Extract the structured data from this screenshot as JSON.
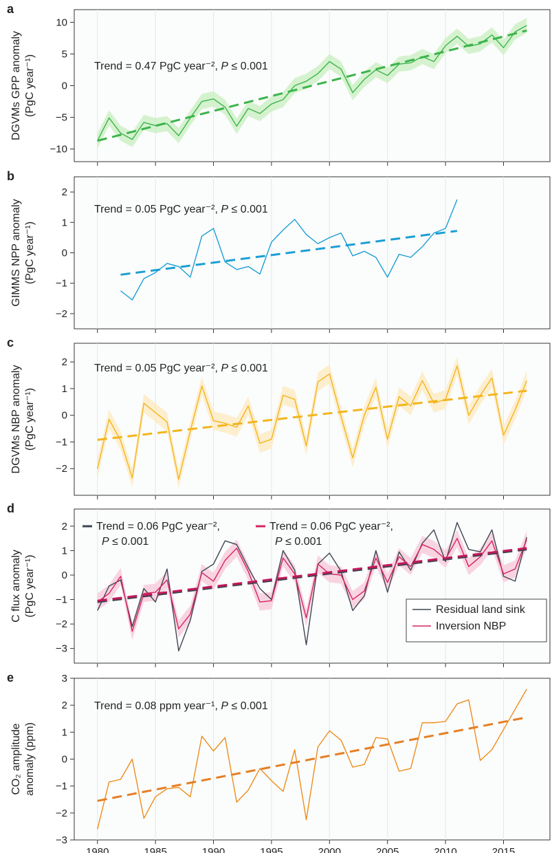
{
  "chart_data": [
    {
      "panel": "a",
      "type": "line",
      "ylabel_lines": [
        "DGVMs GPP anomaly",
        "(PgC year⁻¹)"
      ],
      "ylim": [
        -12,
        12
      ],
      "yticks": [
        -10,
        -5,
        0,
        5,
        10
      ],
      "xlim": [
        1978,
        2019
      ],
      "annotation": {
        "lead": "Trend = 0.47 PgC year⁻², ",
        "italic": "P",
        "tail": " ≤ 0.001"
      },
      "series": [
        {
          "x": [
            1980,
            1981,
            1982,
            1983,
            1984,
            1985,
            1986,
            1987,
            1988,
            1989,
            1990,
            1991,
            1992,
            1993,
            1994,
            1995,
            1996,
            1997,
            1998,
            1999,
            2000,
            2001,
            2002,
            2003,
            2004,
            2005,
            2006,
            2007,
            2008,
            2009,
            2010,
            2011,
            2012,
            2013,
            2014,
            2015,
            2016,
            2017
          ],
          "y": [
            -8.7,
            -5.1,
            -7.5,
            -8.5,
            -5.8,
            -6.3,
            -6.0,
            -7.9,
            -5.1,
            -2.5,
            -2.1,
            -3.4,
            -6.4,
            -3.6,
            -4.4,
            -2.9,
            -2.2,
            0.0,
            0.7,
            1.9,
            3.8,
            2.6,
            -1.1,
            1.0,
            2.5,
            1.6,
            3.4,
            3.6,
            4.6,
            3.8,
            6.3,
            7.8,
            6.2,
            6.6,
            8.0,
            6.0,
            8.5,
            9.5
          ],
          "color": "#3cb44b",
          "band_color": "#c8efc0",
          "band": 1.2
        }
      ],
      "trend": {
        "x": [
          1980,
          2017
        ],
        "y": [
          -8.7,
          8.7
        ],
        "color": "#3cb44b"
      }
    },
    {
      "panel": "b",
      "type": "line",
      "ylabel_lines": [
        "GIMMS NPP anomaly",
        "(PgC year⁻¹)"
      ],
      "ylim": [
        -2.5,
        2.5
      ],
      "yticks": [
        -2,
        -1,
        0,
        1,
        2
      ],
      "xlim": [
        1978,
        2019
      ],
      "annotation": {
        "lead": "Trend = 0.05 PgC year⁻², ",
        "italic": "P",
        "tail": " ≤ 0.001"
      },
      "series": [
        {
          "x": [
            1982,
            1983,
            1984,
            1985,
            1986,
            1987,
            1988,
            1989,
            1990,
            1991,
            1992,
            1993,
            1994,
            1995,
            1996,
            1997,
            1998,
            1999,
            2000,
            2001,
            2002,
            2003,
            2004,
            2005,
            2006,
            2007,
            2008,
            2009,
            2010,
            2011
          ],
          "y": [
            -1.25,
            -1.55,
            -0.85,
            -0.65,
            -0.35,
            -0.45,
            -0.8,
            0.55,
            0.8,
            -0.3,
            -0.55,
            -0.45,
            -0.7,
            0.35,
            0.75,
            1.1,
            0.6,
            0.3,
            0.5,
            0.65,
            -0.1,
            0.05,
            -0.15,
            -0.8,
            -0.05,
            -0.15,
            0.2,
            0.65,
            0.8,
            1.75
          ],
          "color": "#1b9fd4"
        }
      ],
      "trend": {
        "x": [
          1982,
          2011
        ],
        "y": [
          -0.72,
          0.72
        ],
        "color": "#1b9fd4"
      }
    },
    {
      "panel": "c",
      "type": "line",
      "ylabel_lines": [
        "DGVMs NBP anomaly",
        "(PgC year⁻¹)"
      ],
      "ylim": [
        -3,
        2.7
      ],
      "yticks": [
        -2,
        -1,
        0,
        1,
        2
      ],
      "xlim": [
        1978,
        2019
      ],
      "annotation": {
        "lead": "Trend = 0.05 PgC year⁻², ",
        "italic": "P",
        "tail": " ≤ 0.001"
      },
      "series": [
        {
          "x": [
            1980,
            1981,
            1982,
            1983,
            1984,
            1985,
            1986,
            1987,
            1988,
            1989,
            1990,
            1991,
            1992,
            1993,
            1994,
            1995,
            1996,
            1997,
            1998,
            1999,
            2000,
            2001,
            2002,
            2003,
            2004,
            2005,
            2006,
            2007,
            2008,
            2009,
            2010,
            2011,
            2012,
            2013,
            2014,
            2015,
            2016,
            2017
          ],
          "y": [
            -2.0,
            -0.15,
            -0.95,
            -2.35,
            0.45,
            0.1,
            -0.25,
            -2.4,
            -0.6,
            1.1,
            -0.2,
            -0.3,
            -0.45,
            0.35,
            -1.05,
            -0.9,
            0.75,
            0.6,
            -1.15,
            1.25,
            1.55,
            -0.05,
            -1.6,
            0.0,
            1.05,
            -0.9,
            0.7,
            0.35,
            1.3,
            0.45,
            0.6,
            1.85,
            0.0,
            0.75,
            1.4,
            -0.75,
            0.2,
            1.3
          ],
          "color": "#f2b51c",
          "band_color": "#fde9bf",
          "band": 0.35
        }
      ],
      "trend": {
        "x": [
          1980,
          2017
        ],
        "y": [
          -0.92,
          0.92
        ],
        "color": "#f2b51c"
      }
    },
    {
      "panel": "d",
      "type": "line",
      "ylabel_lines": [
        "C flux anomaly",
        "(PgC year⁻¹)"
      ],
      "ylim": [
        -3.6,
        2.7
      ],
      "yticks": [
        -3,
        -2,
        -1,
        0,
        1,
        2
      ],
      "xlim": [
        1978,
        2019
      ],
      "trend_labels": [
        {
          "lead": "Trend = 0.06 PgC year⁻², ",
          "italic": "P",
          "tail": " ≤ 0.001",
          "color": "#3d4550"
        },
        {
          "lead": "Trend = 0.06 PgC year⁻², ",
          "italic": "P",
          "tail": " ≤ 0.001",
          "color": "#d62361"
        }
      ],
      "legend": {
        "placement": "bottom-right",
        "items": [
          "Residual land sink",
          "Inversion NBP"
        ]
      },
      "series": [
        {
          "name": "Residual land sink",
          "x": [
            1980,
            1981,
            1982,
            1983,
            1984,
            1985,
            1986,
            1987,
            1988,
            1989,
            1990,
            1991,
            1992,
            1993,
            1994,
            1995,
            1996,
            1997,
            1998,
            1999,
            2000,
            2001,
            2002,
            2003,
            2004,
            2005,
            2006,
            2007,
            2008,
            2009,
            2010,
            2011,
            2012,
            2013,
            2014,
            2015,
            2016,
            2017
          ],
          "y": [
            -1.45,
            -0.45,
            -0.2,
            -2.1,
            -0.55,
            -1.1,
            0.25,
            -3.1,
            -1.85,
            0.15,
            0.45,
            1.4,
            1.25,
            0.3,
            -0.55,
            -1.0,
            1.0,
            0.2,
            -2.85,
            0.45,
            0.9,
            0.15,
            -1.45,
            -0.85,
            1.0,
            -0.7,
            0.95,
            0.2,
            1.3,
            1.85,
            0.55,
            2.15,
            1.05,
            0.95,
            1.85,
            -0.05,
            -0.25,
            1.55
          ],
          "color": "#3d4550"
        },
        {
          "name": "Inversion NBP",
          "x": [
            1980,
            1981,
            1982,
            1983,
            1984,
            1985,
            1986,
            1987,
            1988,
            1989,
            1990,
            1991,
            1992,
            1993,
            1994,
            1995,
            1996,
            1997,
            1998,
            1999,
            2000,
            2001,
            2002,
            2003,
            2004,
            2005,
            2006,
            2007,
            2008,
            2009,
            2010,
            2011,
            2012,
            2013,
            2014,
            2015,
            2016,
            2017
          ],
          "y": [
            -1.1,
            -0.75,
            -0.05,
            -2.3,
            -0.75,
            -0.7,
            -0.2,
            -2.2,
            -1.6,
            0.1,
            -0.25,
            0.6,
            1.1,
            0.15,
            -1.1,
            -1.05,
            0.7,
            0.05,
            -1.75,
            0.45,
            0.05,
            0.0,
            -1.0,
            -0.65,
            0.7,
            -0.3,
            0.75,
            0.35,
            1.25,
            1.05,
            0.65,
            1.5,
            0.35,
            0.75,
            1.4,
            0.05,
            0.25,
            1.45
          ],
          "color": "#d62361",
          "band_color": "#f7c7d8",
          "band": 0.35
        }
      ],
      "trends": [
        {
          "x": [
            1980,
            2017
          ],
          "y": [
            -1.1,
            1.05
          ],
          "color": "#3d4550"
        },
        {
          "x": [
            1980,
            2017
          ],
          "y": [
            -1.05,
            1.1
          ],
          "color": "#c2185b"
        }
      ]
    },
    {
      "panel": "e",
      "type": "line",
      "ylabel_lines": [
        "CO₂ amplitude",
        "anomaly (ppm)"
      ],
      "ylim": [
        -3,
        3
      ],
      "yticks": [
        -3,
        -2,
        -1,
        0,
        1,
        2,
        3
      ],
      "xlim": [
        1978,
        2019
      ],
      "xticks": [
        1980,
        1985,
        1990,
        1995,
        2000,
        2005,
        2010,
        2015
      ],
      "annotation": {
        "lead": "Trend = 0.08 ppm year⁻¹, ",
        "italic": "P",
        "tail": " ≤ 0.001"
      },
      "series": [
        {
          "x": [
            1980,
            1981,
            1982,
            1983,
            1984,
            1985,
            1986,
            1987,
            1988,
            1989,
            1990,
            1991,
            1992,
            1993,
            1994,
            1995,
            1996,
            1997,
            1998,
            1999,
            2000,
            2001,
            2002,
            2003,
            2004,
            2005,
            2006,
            2007,
            2008,
            2009,
            2010,
            2011,
            2012,
            2013,
            2014,
            2015,
            2016,
            2017
          ],
          "y": [
            -2.6,
            -0.85,
            -0.75,
            0.0,
            -2.2,
            -1.4,
            -1.1,
            -1.05,
            -1.4,
            0.85,
            0.3,
            0.8,
            -1.6,
            -1.15,
            -0.35,
            -0.8,
            -1.2,
            0.35,
            -2.25,
            0.45,
            1.05,
            0.7,
            -0.3,
            -0.2,
            0.8,
            0.75,
            -0.45,
            -0.35,
            1.35,
            1.35,
            1.4,
            2.05,
            2.2,
            -0.05,
            0.35,
            1.1,
            1.85,
            2.6
          ],
          "color": "#ee8c1a"
        }
      ],
      "trend": {
        "x": [
          1980,
          2017
        ],
        "y": [
          -1.55,
          1.55
        ],
        "color": "#e67e22"
      }
    }
  ]
}
